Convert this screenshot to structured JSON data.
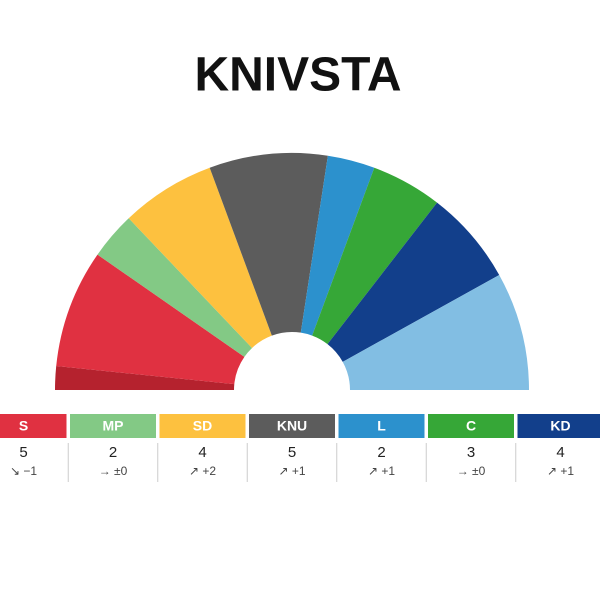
{
  "chart_data": {
    "type": "parliament",
    "title": "KNIVSTA",
    "categories": [
      null,
      "S",
      "MP",
      "SD",
      "KNU",
      "L",
      "C",
      "KD",
      null
    ],
    "values": [
      1,
      5,
      2,
      4,
      5,
      2,
      3,
      4,
      5
    ],
    "colors": [
      "#b5222e",
      "#e03141",
      "#83c985",
      "#fdc13f",
      "#5c5c5c",
      "#2c91cd",
      "#36a737",
      "#123f8b",
      "#82bee3"
    ],
    "changes": [
      null,
      "↘ −1",
      "→ ±0",
      "↗ +2",
      "↗ +1",
      "↗ +1",
      "→ ±0",
      "↗ +1",
      null
    ]
  }
}
